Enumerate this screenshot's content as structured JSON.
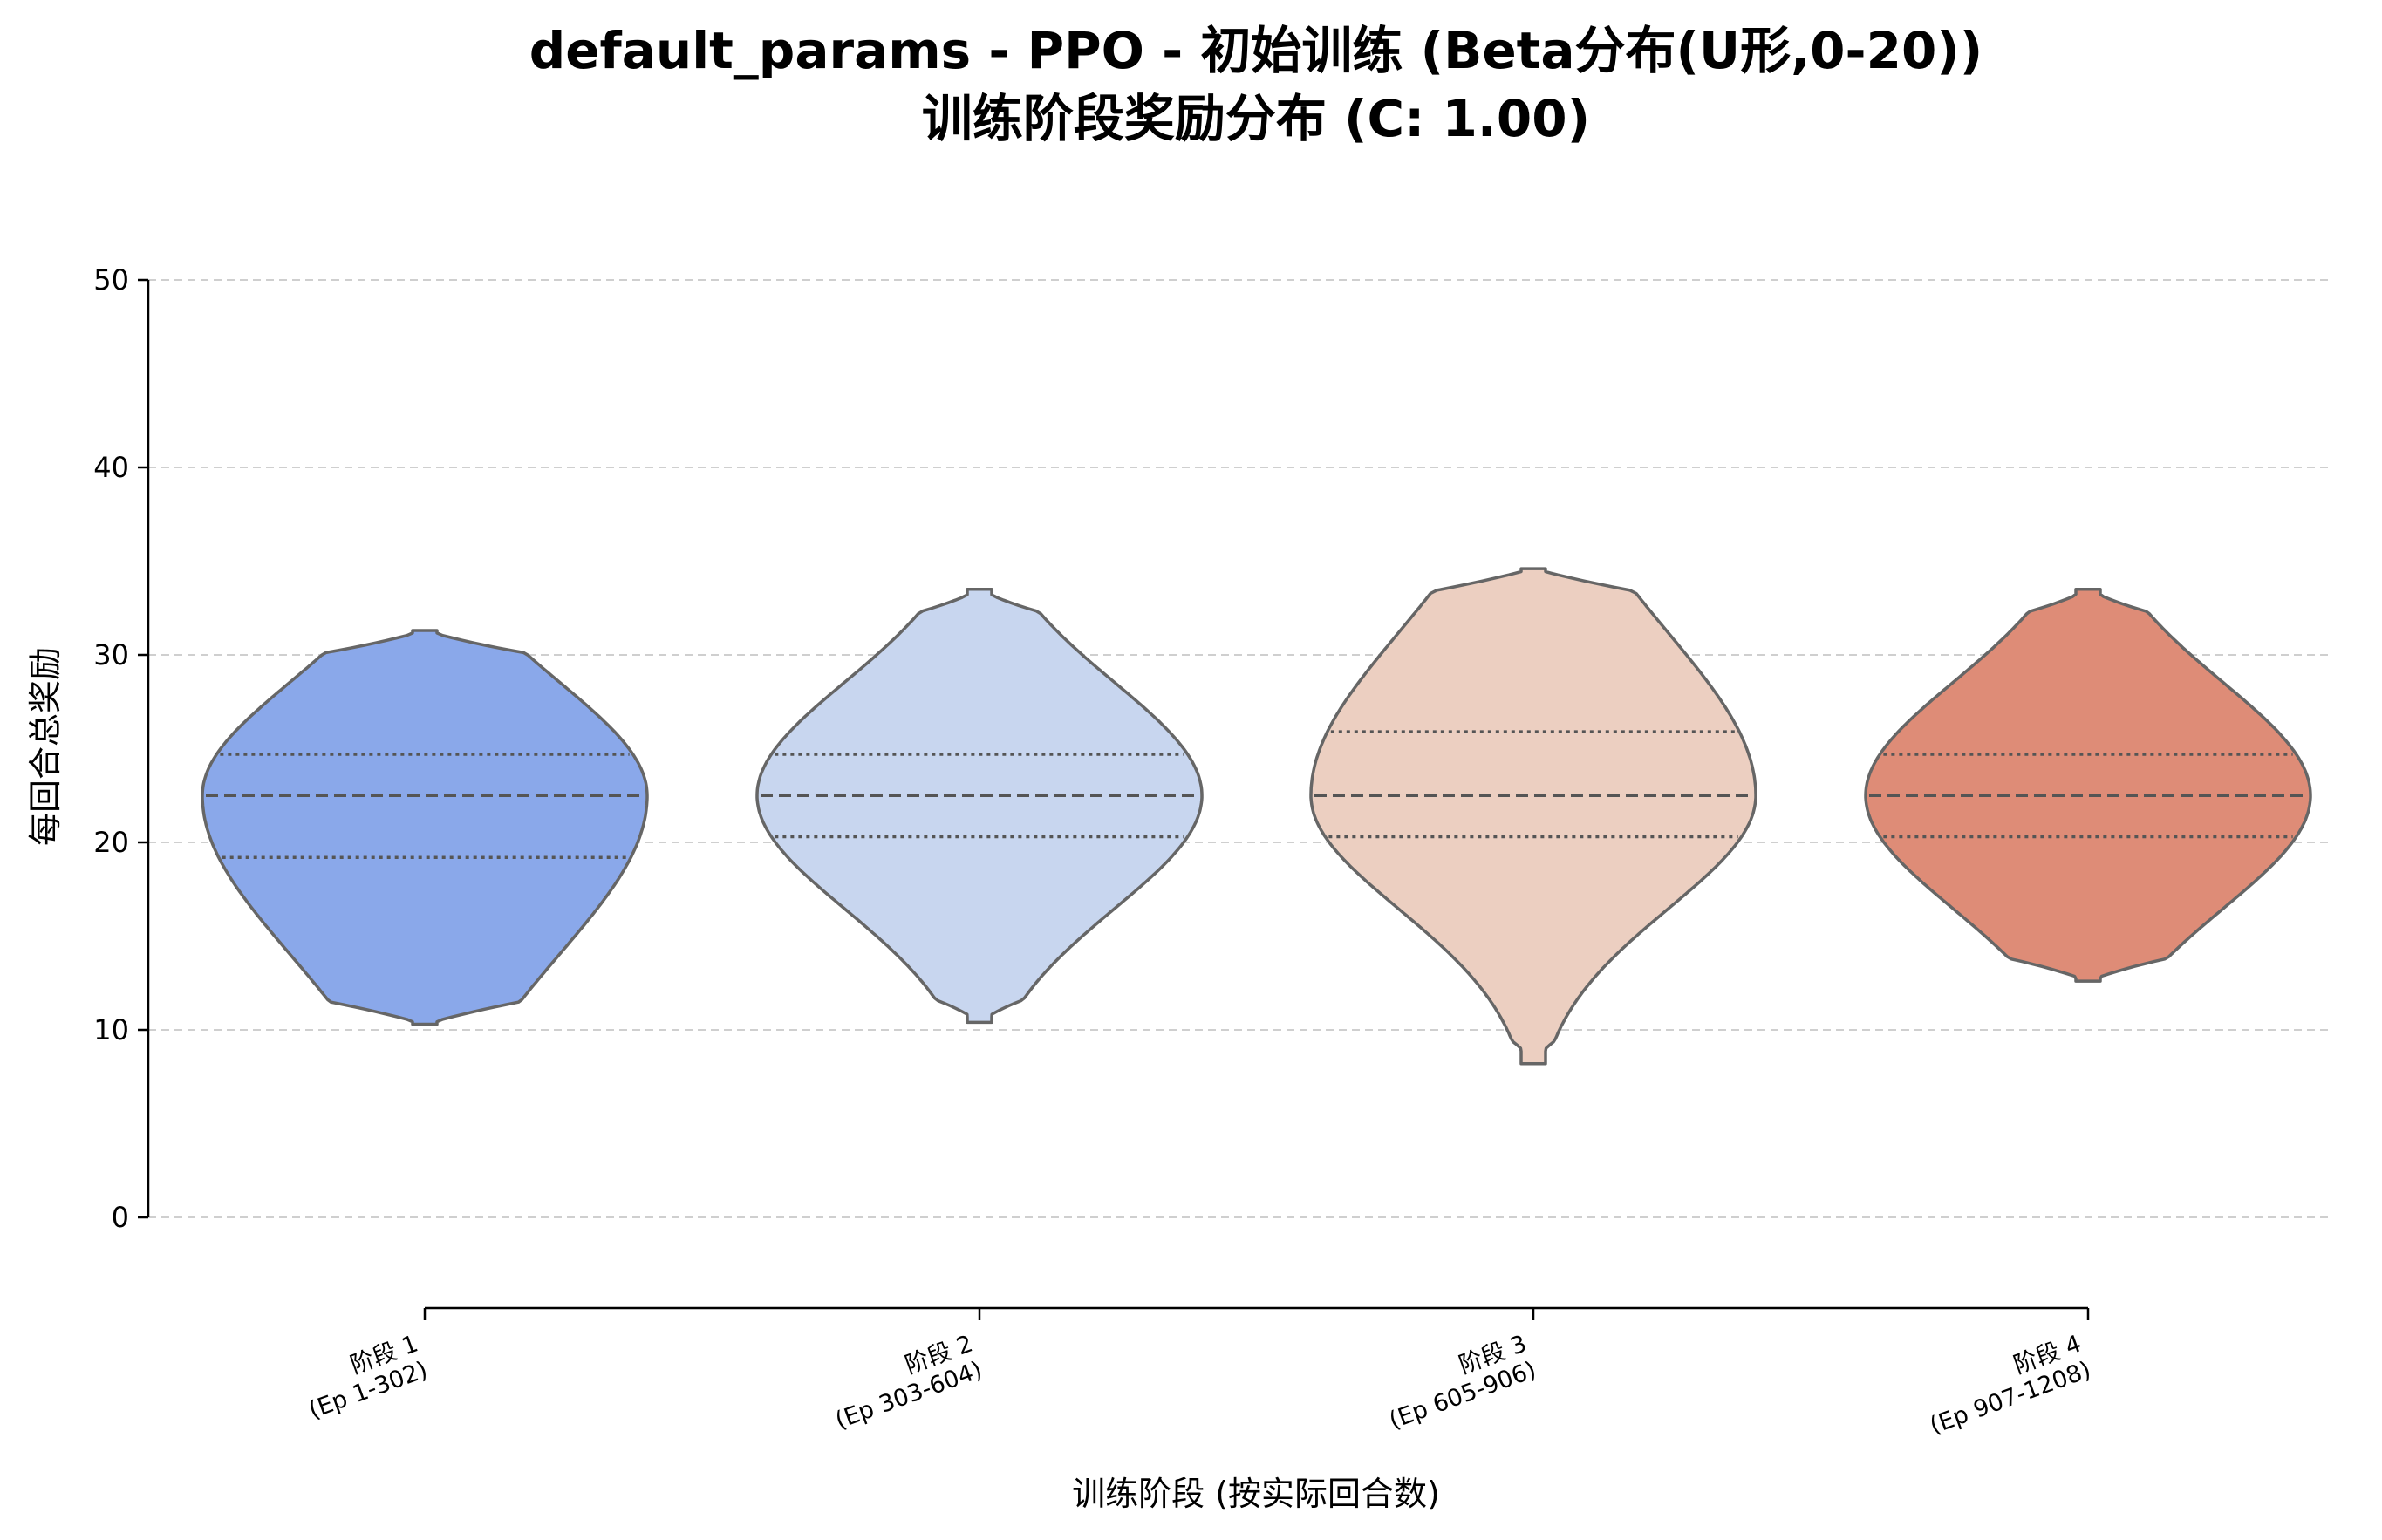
{
  "chart_data": {
    "type": "violin",
    "title": "default_params - PPO - 初始训练 (Beta分布(U形,0-20))",
    "subtitle": "训练阶段奖励分布 (C: 1.00)",
    "xlabel": "训练阶段 (按实际回合数)",
    "ylabel": "每回合总奖励",
    "ylim": [
      0,
      50
    ],
    "yticks": [
      0,
      10,
      20,
      30,
      40,
      50
    ],
    "grid": "y-dashed",
    "categories": [
      {
        "line1": "阶段 1",
        "line2": "(Ep 1-302)"
      },
      {
        "line1": "阶段 2",
        "line2": "(Ep 303-604)"
      },
      {
        "line1": "阶段 3",
        "line2": "(Ep 605-906)"
      },
      {
        "line1": "阶段 4",
        "line2": "(Ep 907-1208)"
      }
    ],
    "series": [
      {
        "color": "#8aa8ea",
        "min": 10.3,
        "max": 31.3,
        "q1": 19.2,
        "median": 22.5,
        "q3": 24.7
      },
      {
        "color": "#c8d6ef",
        "min": 10.4,
        "max": 33.5,
        "q1": 20.3,
        "median": 22.5,
        "q3": 24.7
      },
      {
        "color": "#eccfc1",
        "min": 8.2,
        "max": 34.6,
        "q1": 20.3,
        "median": 22.5,
        "q3": 25.9
      },
      {
        "color": "#de8c77",
        "min": 12.6,
        "max": 33.5,
        "q1": 20.3,
        "median": 22.5,
        "q3": 24.7
      }
    ]
  }
}
